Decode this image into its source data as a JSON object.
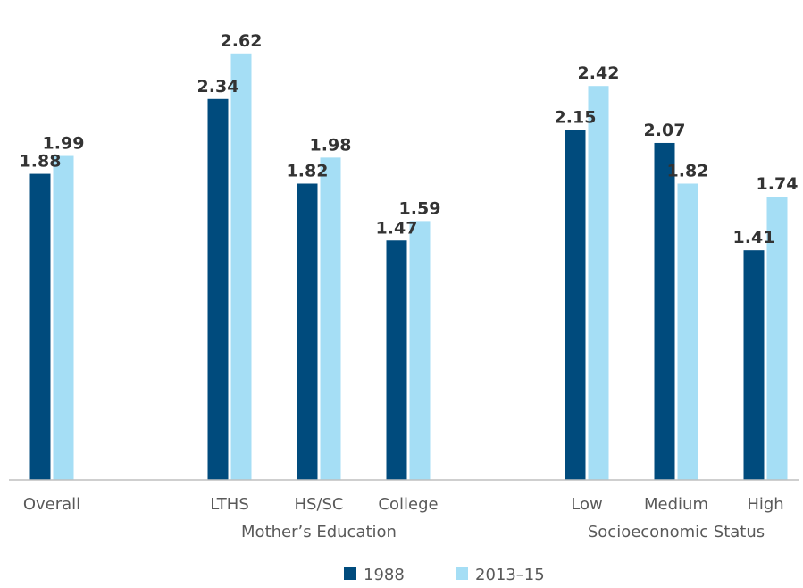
{
  "chart_data": {
    "type": "bar",
    "title": "",
    "xlabel": "",
    "ylabel": "",
    "ylim": [
      0,
      2.8
    ],
    "grid": false,
    "legend_position": "bottom",
    "categories": [
      "Overall",
      "LTHS",
      "HS/SC",
      "College",
      "Low",
      "Medium",
      "High"
    ],
    "groups": [
      {
        "label": "",
        "categories": [
          "Overall"
        ]
      },
      {
        "label": "Mother’s Education",
        "categories": [
          "LTHS",
          "HS/SC",
          "College"
        ]
      },
      {
        "label": "Socioeconomic Status",
        "categories": [
          "Low",
          "Medium",
          "High"
        ]
      }
    ],
    "series": [
      {
        "name": "1988",
        "color": "#004b7d",
        "values": [
          1.88,
          2.34,
          1.82,
          1.47,
          2.15,
          2.07,
          1.41
        ]
      },
      {
        "name": "2013–15",
        "color": "#a5def5",
        "values": [
          1.99,
          2.62,
          1.98,
          1.59,
          2.42,
          1.82,
          1.74
        ]
      }
    ]
  }
}
